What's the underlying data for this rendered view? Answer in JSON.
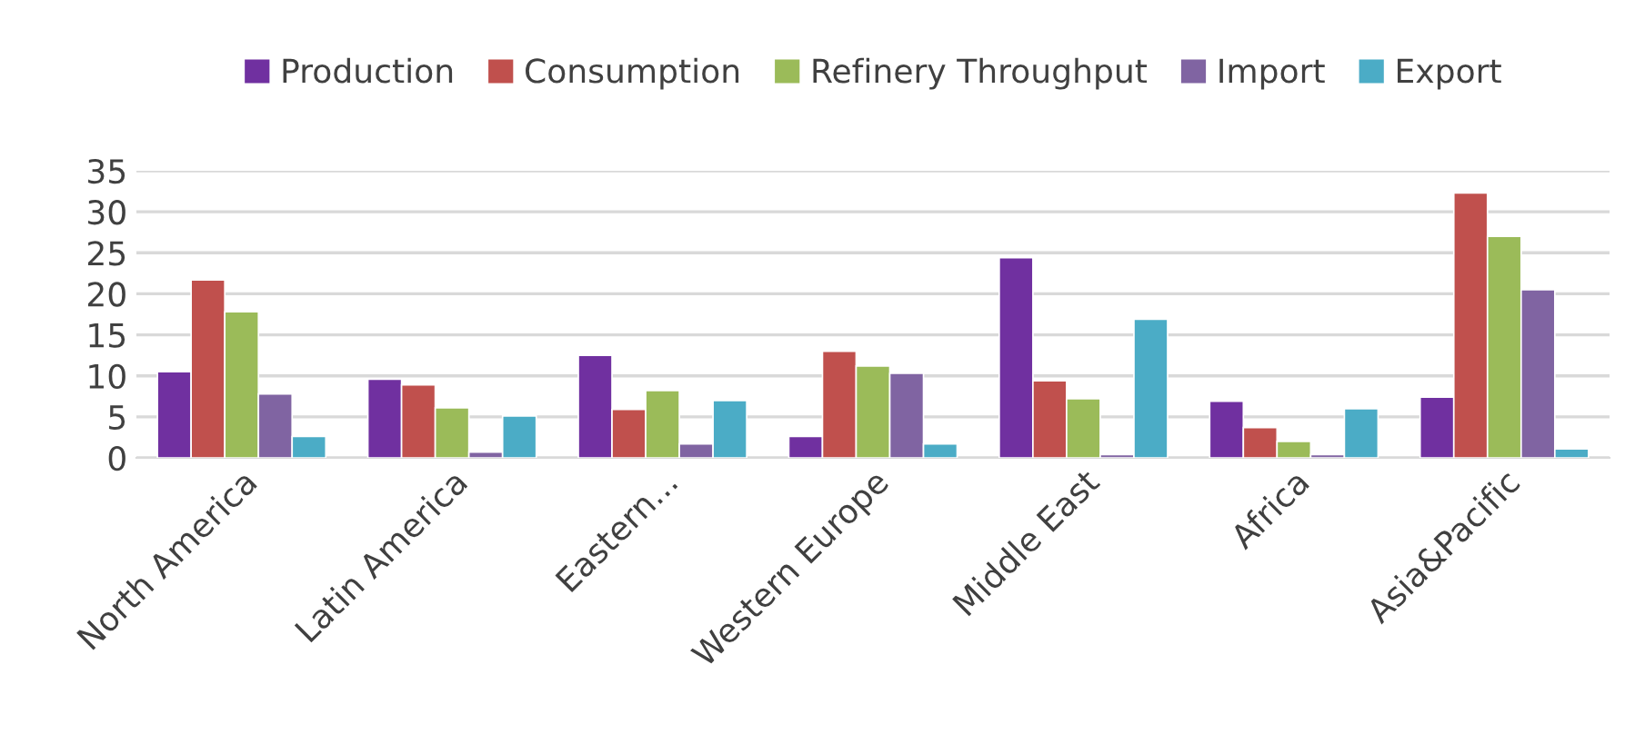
{
  "chart_data": {
    "type": "bar",
    "categories": [
      "North America",
      "Latin America",
      "Eastern...",
      "Western Europe",
      "Middle East",
      "Africa",
      "Asia&Pacific"
    ],
    "series": [
      {
        "name": "Production",
        "color": "#7030a0",
        "values": [
          10.5,
          9.6,
          12.5,
          2.6,
          24.4,
          6.9,
          7.4
        ]
      },
      {
        "name": "Consumption",
        "color": "#c0504d",
        "values": [
          21.7,
          8.9,
          5.9,
          13.0,
          9.4,
          3.7,
          32.3
        ]
      },
      {
        "name": "Refinery Throughput",
        "color": "#9bbb59",
        "values": [
          17.8,
          6.1,
          8.2,
          11.2,
          7.2,
          2.0,
          27.0
        ]
      },
      {
        "name": "Import",
        "color": "#8064a2",
        "values": [
          7.8,
          0.7,
          1.7,
          10.3,
          0.4,
          0.4,
          20.5
        ]
      },
      {
        "name": "Export",
        "color": "#4bacc6",
        "values": [
          2.6,
          5.1,
          7.0,
          1.7,
          16.9,
          6.0,
          1.1
        ]
      }
    ],
    "ylim": [
      0,
      35
    ],
    "yticks": [
      0,
      5,
      10,
      15,
      20,
      25,
      30,
      35
    ],
    "grid": "y",
    "legend": "top"
  }
}
